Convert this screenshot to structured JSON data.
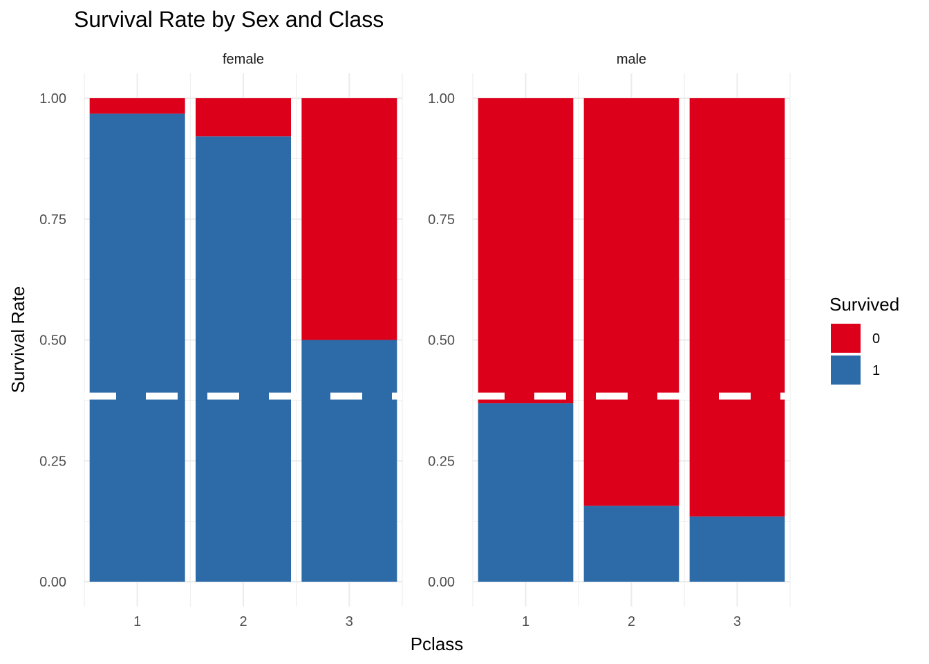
{
  "chart_data": {
    "type": "bar",
    "stacked": true,
    "title": "Survival Rate by Sex and Class",
    "xlabel": "Pclass",
    "ylabel": "Survival Rate",
    "ylim": [
      0,
      1
    ],
    "y_ticks": [
      "0.00",
      "0.25",
      "0.50",
      "0.75",
      "1.00"
    ],
    "y_tick_values": [
      0,
      0.25,
      0.5,
      0.75,
      1
    ],
    "categories": [
      "1",
      "2",
      "3"
    ],
    "grid": true,
    "legend": {
      "title": "Survived",
      "placement": "right",
      "entries": [
        {
          "label": "0",
          "color": "#DC001B"
        },
        {
          "label": "1",
          "color": "#2D6BA8"
        }
      ]
    },
    "facets": [
      {
        "label": "female",
        "series": [
          {
            "name": "1",
            "values": [
              0.968,
              0.921,
              0.5
            ]
          },
          {
            "name": "0",
            "values": [
              0.032,
              0.079,
              0.5
            ]
          }
        ]
      },
      {
        "label": "male",
        "series": [
          {
            "name": "1",
            "values": [
              0.369,
              0.157,
              0.135
            ]
          },
          {
            "name": "0",
            "values": [
              0.631,
              0.843,
              0.865
            ]
          }
        ]
      }
    ],
    "reference_line": {
      "y": 0.384,
      "style": "dashed",
      "color": "#FFFFFF"
    }
  }
}
